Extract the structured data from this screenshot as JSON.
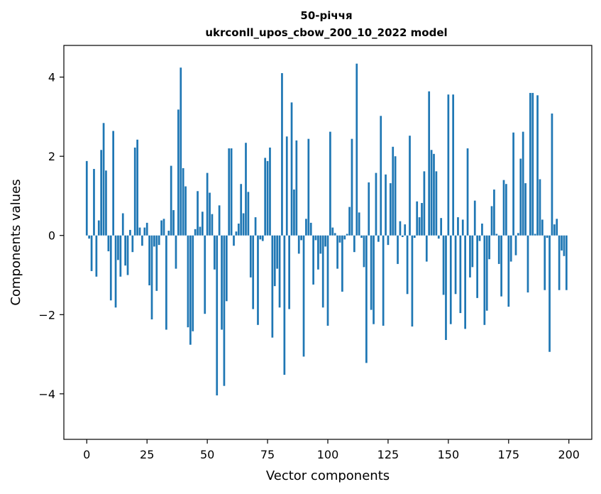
{
  "chart_data": {
    "type": "bar",
    "title": "50-річчя",
    "subtitle": "ukrconll_upos_cbow_200_10_2022 model",
    "xlabel": "Vector components",
    "ylabel": "Components values",
    "xlim": [
      -9.5,
      209.5
    ],
    "ylim": [
      -5.15,
      4.8
    ],
    "xticks": [
      0,
      25,
      50,
      75,
      100,
      125,
      150,
      175,
      200
    ],
    "yticks": [
      -4,
      -2,
      0,
      2,
      4
    ],
    "xtick_labels": [
      "0",
      "25",
      "50",
      "75",
      "100",
      "125",
      "150",
      "175",
      "200"
    ],
    "ytick_labels": [
      "−4",
      "−2",
      "0",
      "2",
      "4"
    ],
    "grid": false,
    "color": "#1f77b4",
    "values": [
      1.88,
      -0.08,
      -0.9,
      1.68,
      -1.04,
      0.38,
      2.16,
      2.84,
      1.64,
      -0.4,
      -1.64,
      2.64,
      -1.82,
      -0.62,
      -1.04,
      0.56,
      -0.76,
      -1.0,
      0.14,
      -0.42,
      2.22,
      2.42,
      0.2,
      -0.26,
      0.2,
      0.32,
      -1.26,
      -2.12,
      -0.28,
      -1.4,
      -0.24,
      0.38,
      0.42,
      -2.38,
      0.12,
      1.76,
      0.64,
      -0.84,
      3.18,
      4.24,
      1.7,
      1.24,
      -2.32,
      -2.76,
      -2.42,
      0.16,
      1.12,
      0.22,
      0.6,
      -1.98,
      1.58,
      1.08,
      0.54,
      -0.86,
      -4.04,
      0.76,
      -2.38,
      -3.8,
      -1.66,
      2.2,
      2.2,
      -0.26,
      0.1,
      0.3,
      1.3,
      0.56,
      2.34,
      1.1,
      -1.06,
      -1.86,
      0.46,
      -2.26,
      -0.1,
      -0.14,
      1.96,
      1.88,
      2.22,
      -2.58,
      -1.28,
      -0.84,
      -1.82,
      4.1,
      -3.52,
      2.5,
      -1.86,
      3.36,
      1.16,
      2.4,
      -0.46,
      -0.12,
      -3.06,
      0.42,
      2.44,
      0.32,
      -1.24,
      -0.12,
      -0.86,
      -0.46,
      -1.82,
      -0.28,
      -2.28,
      2.62,
      0.2,
      0.06,
      -0.84,
      -0.18,
      -1.42,
      -0.1,
      0.04,
      0.72,
      2.44,
      -0.42,
      4.34,
      0.58,
      -0.06,
      -0.8,
      -3.22,
      1.34,
      -1.88,
      -2.24,
      1.58,
      -0.16,
      3.02,
      -2.28,
      1.54,
      -0.24,
      1.32,
      2.24,
      2.0,
      -0.72,
      0.36,
      -0.04,
      0.28,
      -1.48,
      2.52,
      -2.3,
      -0.06,
      0.86,
      0.46,
      0.82,
      1.62,
      -0.66,
      3.64,
      2.16,
      2.06,
      1.62,
      -0.08,
      0.44,
      -1.5,
      -2.64,
      3.56,
      -2.24,
      3.56,
      -1.48,
      0.46,
      -1.96,
      0.4,
      -2.36,
      2.2,
      -1.06,
      -0.8,
      0.88,
      -1.58,
      -0.14,
      0.3,
      -2.26,
      -1.9,
      -0.6,
      0.74,
      1.16,
      0.04,
      -0.72,
      -1.54,
      1.4,
      1.3,
      -1.8,
      -0.66,
      2.6,
      -0.5,
      0.06,
      1.94,
      2.62,
      1.32,
      -1.44,
      3.6,
      3.6,
      0.04,
      3.54,
      1.42,
      0.4,
      -1.38,
      -0.06,
      -2.94,
      3.08,
      0.28,
      0.42,
      -1.38,
      -0.38,
      -0.52,
      -1.38
    ]
  }
}
